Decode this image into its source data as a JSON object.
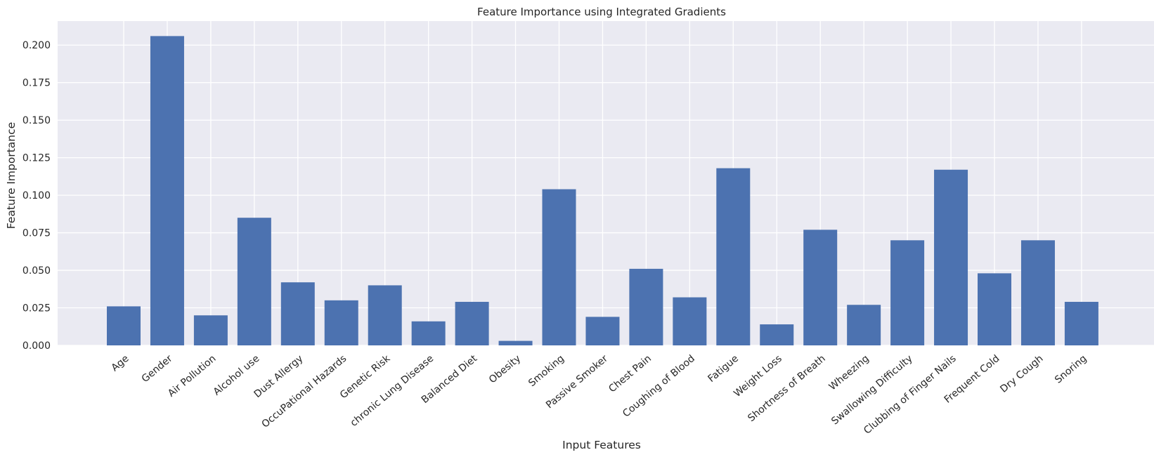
{
  "chart_data": {
    "type": "bar",
    "title": "Feature Importance using Integrated Gradients",
    "xlabel": "Input Features",
    "ylabel": "Feature Importance",
    "ylim": [
      0,
      0.216
    ],
    "yticks": [
      "0.000",
      "0.025",
      "0.050",
      "0.075",
      "0.100",
      "0.125",
      "0.150",
      "0.175",
      "0.200"
    ],
    "grid": true,
    "categories": [
      "Age",
      "Gender",
      "Air Pollution",
      "Alcohol use",
      "Dust Allergy",
      "OccuPational Hazards",
      "Genetic Risk",
      "chronic Lung Disease",
      "Balanced Diet",
      "Obesity",
      "Smoking",
      "Passive Smoker",
      "Chest Pain",
      "Coughing of Blood",
      "Fatigue",
      "Weight Loss",
      "Shortness of Breath",
      "Wheezing",
      "Swallowing Difficulty",
      "Clubbing of Finger Nails",
      "Frequent Cold",
      "Dry Cough",
      "Snoring"
    ],
    "values": [
      0.026,
      0.206,
      0.02,
      0.085,
      0.042,
      0.03,
      0.04,
      0.016,
      0.029,
      0.003,
      0.104,
      0.019,
      0.051,
      0.032,
      0.118,
      0.014,
      0.077,
      0.027,
      0.07,
      0.117,
      0.048,
      0.07,
      0.029
    ],
    "colors": {
      "bar": "#4c72b0",
      "plot_background": "#eaeaf2",
      "grid": "#ffffff",
      "text": "#262626"
    }
  }
}
